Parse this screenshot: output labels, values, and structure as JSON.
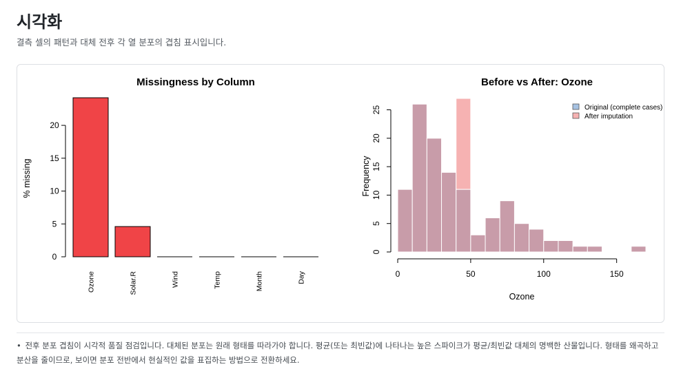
{
  "page": {
    "title": "시각화",
    "subtitle": "결측 셀의 패턴과 대체 전후 각 열 분포의 겹침 표시입니다."
  },
  "note": {
    "bullet": "•",
    "text": "전후 분포 겹침이 시각적 품질 점검입니다. 대체된 분포는 원래 형태를 따라가야 합니다. 평균(또는 최빈값)에 나타나는 높은 스파이크가 평균/최빈값 대체의 명백한 산물입니다. 형태를 왜곡하고 분산을 줄이므로, 보이면 분포 전반에서 현실적인 값을 표집하는 방법으로 전환하세요."
  },
  "chart_data": [
    {
      "type": "bar",
      "title": "Missingness by Column",
      "xlabel": "",
      "ylabel": "% missing",
      "categories": [
        "Ozone",
        "Solar.R",
        "Wind",
        "Temp",
        "Month",
        "Day"
      ],
      "values": [
        24.2,
        4.6,
        0,
        0,
        0,
        0
      ],
      "ylim": [
        0,
        24.2
      ],
      "yticks": [
        0,
        5,
        10,
        15,
        20
      ],
      "color": "#f04447",
      "grid": false
    },
    {
      "type": "histogram",
      "title": "Before vs After: Ozone",
      "xlabel": "Ozone",
      "ylabel": "Frequency",
      "bin_width": 10,
      "bin_starts": [
        0,
        10,
        20,
        30,
        40,
        50,
        60,
        70,
        80,
        90,
        100,
        110,
        120,
        130,
        140,
        150,
        160
      ],
      "xlim": [
        0,
        170
      ],
      "ylim": [
        0,
        27
      ],
      "xticks": [
        0,
        50,
        100,
        150
      ],
      "yticks": [
        0,
        5,
        10,
        15,
        20,
        25
      ],
      "legend_position": "top-right",
      "grid": false,
      "series": [
        {
          "name": "Original (complete cases)",
          "color": "#a6c2e2",
          "values": [
            11,
            26,
            20,
            14,
            11,
            3,
            6,
            9,
            5,
            4,
            2,
            2,
            1,
            1,
            0,
            0,
            1
          ]
        },
        {
          "name": "After imputation",
          "color": "#f6b2b2",
          "values": [
            11,
            26,
            20,
            14,
            27,
            3,
            6,
            9,
            5,
            4,
            2,
            2,
            1,
            1,
            0,
            0,
            1
          ]
        }
      ],
      "overlap_color": "#c89ca9"
    }
  ]
}
